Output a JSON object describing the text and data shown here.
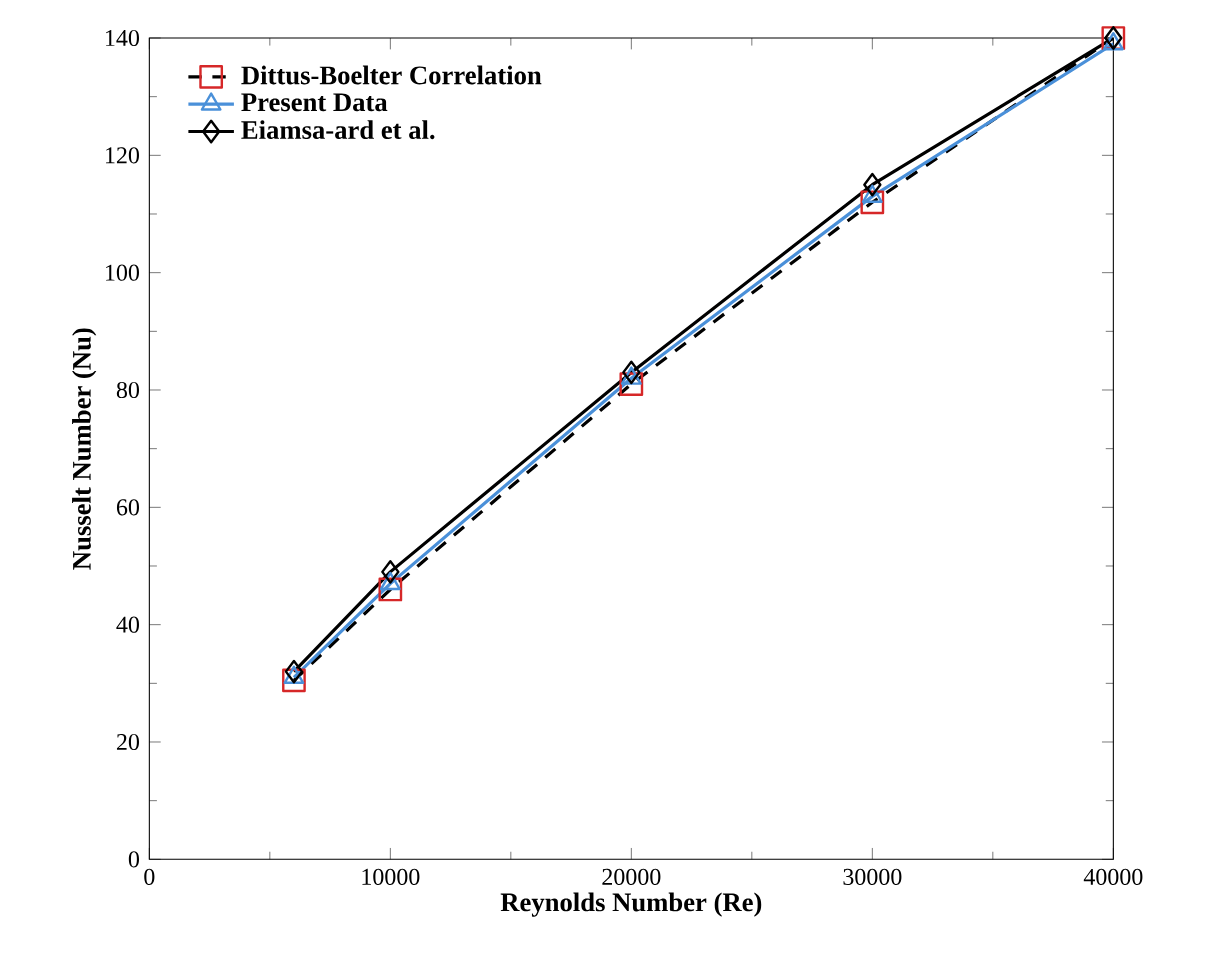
{
  "chart_data": {
    "type": "line",
    "xlabel": "Reynolds Number (Re)",
    "ylabel": "Nusselt Number (Nu)",
    "x": [
      6000,
      10000,
      20000,
      30000,
      40000
    ],
    "series": [
      {
        "name": "Dittus-Boelter Correlation",
        "color": "#000000",
        "colors": [
          "#d62728",
          "#d62728",
          "#d62728",
          "#d62728",
          "#d62728"
        ],
        "values": [
          30.5,
          46,
          81,
          112,
          140
        ],
        "marker": "square",
        "line_style": "dashed"
      },
      {
        "name": "Present Data",
        "color": "#4a90d9",
        "values": [
          31,
          47,
          82,
          113,
          139
        ],
        "marker": "triangle",
        "line_style": "solid"
      },
      {
        "name": "Eiamsa-ard et al.",
        "color": "#000000",
        "values": [
          32,
          49,
          83,
          115,
          140
        ],
        "marker": "diamond",
        "line_style": "solid"
      }
    ],
    "xlim": [
      0,
      40000
    ],
    "xticks": [
      0,
      10000,
      20000,
      30000,
      40000
    ],
    "ylim": [
      0,
      140
    ],
    "yticks": [
      0,
      20,
      40,
      60,
      80,
      100,
      120,
      140
    ],
    "grid": false,
    "legend": "top left"
  }
}
